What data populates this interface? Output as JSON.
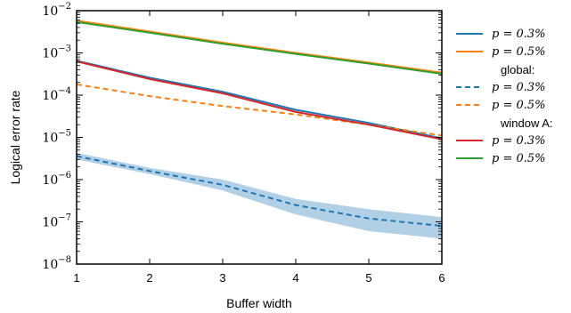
{
  "chart_data": {
    "type": "line",
    "xlabel": "Buffer width",
    "ylabel": "Logical error rate",
    "x": [
      1,
      2,
      3,
      4,
      5,
      6
    ],
    "xlim": [
      1,
      6
    ],
    "ylim": [
      1e-08,
      0.01
    ],
    "yscale": "log",
    "x_ticks": [
      "1",
      "2",
      "3",
      "4",
      "5",
      "6"
    ],
    "y_tick_exponents": [
      -8,
      -7,
      -6,
      -5,
      -4,
      -3,
      -2
    ],
    "legend_position": "right, outside",
    "legend_groups": [
      {
        "header": "",
        "entries": [
          {
            "label": "p = 0.3%",
            "color": "#1f77b4",
            "style": "solid"
          },
          {
            "label": "p = 0.5%",
            "color": "#ff7f0e",
            "style": "solid"
          }
        ]
      },
      {
        "header": "global:",
        "entries": [
          {
            "label": "p = 0.3%",
            "color": "#1f77b4",
            "style": "dashed"
          },
          {
            "label": "p = 0.5%",
            "color": "#ff7f0e",
            "style": "dashed"
          }
        ]
      },
      {
        "header": "window A:",
        "entries": [
          {
            "label": "p = 0.3%",
            "color": "#d62728",
            "style": "solid"
          },
          {
            "label": "p = 0.5%",
            "color": "#2ca02c",
            "style": "solid"
          }
        ]
      }
    ],
    "series": [
      {
        "color": "#1f77b4",
        "style": "solid",
        "values": [
          0.00065,
          0.00026,
          0.00012,
          4.5e-05,
          2.2e-05,
          9.5e-06
        ]
      },
      {
        "color": "#ff7f0e",
        "style": "solid",
        "values": [
          0.0058,
          0.0032,
          0.00175,
          0.001,
          0.00059,
          0.00034
        ]
      },
      {
        "color": "#ff7f0e",
        "style": "dashed",
        "values": [
          0.00018,
          9.5e-05,
          5.5e-05,
          3.5e-05,
          2e-05,
          1.1e-05
        ]
      },
      {
        "color": "#d62728",
        "style": "solid",
        "values": [
          0.00063,
          0.00024,
          0.00011,
          4e-05,
          2e-05,
          9e-06
        ]
      },
      {
        "color": "#2ca02c",
        "style": "solid",
        "values": [
          0.0054,
          0.003,
          0.00165,
          0.00095,
          0.00056,
          0.00032
        ]
      },
      {
        "color": "#1f77b4",
        "style": "dashed",
        "values": [
          3.6e-06,
          1.6e-06,
          7.5e-07,
          2.5e-07,
          1.2e-07,
          8e-08
        ],
        "band_low": [
          3e-06,
          1.35e-06,
          5.5e-07,
          1.5e-07,
          6e-08,
          4e-08
        ],
        "band_high": [
          4.3e-06,
          1.9e-06,
          1e-06,
          3.5e-07,
          2e-07,
          1.3e-07
        ]
      }
    ]
  }
}
